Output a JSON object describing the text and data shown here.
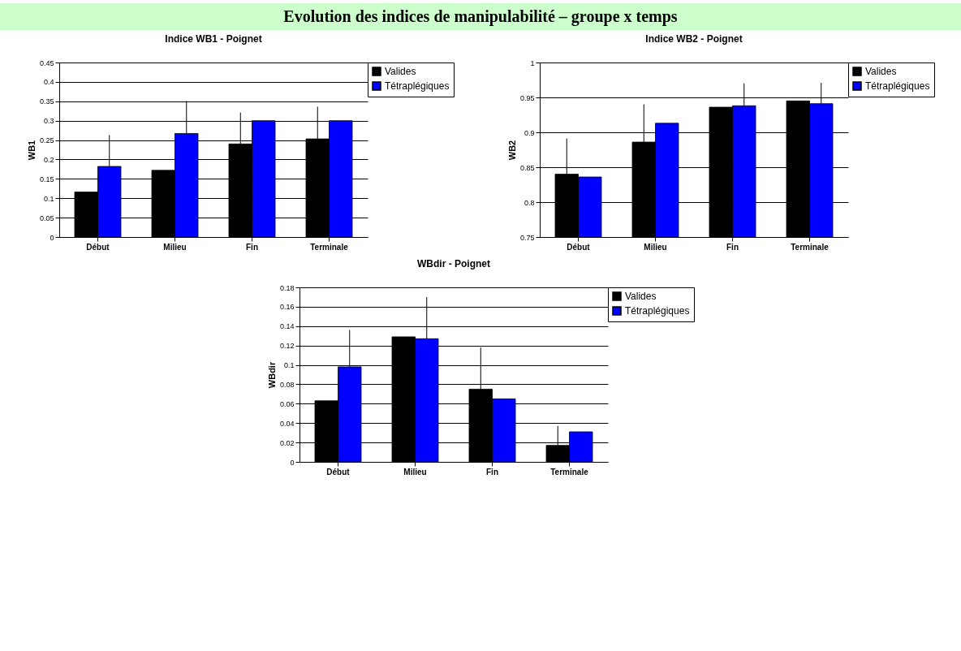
{
  "chart_data": [
    {
      "type": "other",
      "title": "Evolution des indices de manipulabilité – groupe x temps"
    },
    {
      "type": "bar",
      "title": "Indice WB1 - Poignet",
      "ylabel": "WB1",
      "categories": [
        "Début",
        "Milieu",
        "Fin",
        "Terminale"
      ],
      "ylim": [
        0,
        0.45
      ],
      "yticks": [
        0,
        0.05,
        0.1,
        0.15,
        0.2,
        0.25,
        0.3,
        0.35,
        0.4,
        0.45
      ],
      "grid": "y",
      "legend": "top right",
      "series": [
        {
          "name": "Valides",
          "color": "#000000",
          "values": [
            0.116,
            0.172,
            0.24,
            0.253
          ],
          "errors": [
            null,
            null,
            [
              0.24,
              0.321
            ],
            [
              0.253,
              0.336
            ]
          ]
        },
        {
          "name": "Tétraplégiques",
          "color": "#0000ff",
          "values": [
            0.182,
            0.267,
            0.3,
            0.3
          ],
          "errors": [
            [
              0.182,
              0.263
            ],
            [
              0.267,
              0.351
            ],
            null,
            null
          ]
        }
      ]
    },
    {
      "type": "bar",
      "title": "Indice WB2 - Poignet",
      "ylabel": "WB2",
      "categories": [
        "Début",
        "Milieu",
        "Fin",
        "Terminale"
      ],
      "ylim": [
        0.75,
        1
      ],
      "yticks": [
        0.75,
        0.8,
        0.85,
        0.9,
        0.95,
        1
      ],
      "grid": "y",
      "legend": "top right",
      "series": [
        {
          "name": "Valides",
          "color": "#000000",
          "values": [
            0.84,
            0.886,
            0.936,
            0.945
          ],
          "errors": [
            [
              0.84,
              0.891
            ],
            [
              0.886,
              0.94
            ],
            null,
            null
          ]
        },
        {
          "name": "Tétraplégiques",
          "color": "#0000ff",
          "values": [
            0.836,
            0.913,
            0.938,
            0.941
          ],
          "errors": [
            null,
            null,
            [
              0.938,
              0.97
            ],
            [
              0.941,
              0.971
            ]
          ]
        }
      ]
    },
    {
      "type": "bar",
      "title": "WBdir - Poignet",
      "ylabel": "WBdir",
      "categories": [
        "Début",
        "Milieu",
        "Fin",
        "Terminale"
      ],
      "ylim": [
        0,
        0.18
      ],
      "yticks": [
        0,
        0.02,
        0.04,
        0.06,
        0.08,
        0.1,
        0.12,
        0.14,
        0.16,
        0.18
      ],
      "grid": "y",
      "legend": "top right",
      "series": [
        {
          "name": "Valides",
          "color": "#000000",
          "values": [
            0.063,
            0.129,
            0.075,
            0.017
          ],
          "errors": [
            null,
            null,
            [
              0.075,
              0.118
            ],
            [
              0.017,
              0.037
            ]
          ]
        },
        {
          "name": "Tétraplégiques",
          "color": "#0000ff",
          "values": [
            0.098,
            0.127,
            0.065,
            0.031
          ],
          "errors": [
            [
              0.098,
              0.136
            ],
            [
              0.127,
              0.17
            ],
            null,
            null
          ]
        }
      ]
    }
  ]
}
